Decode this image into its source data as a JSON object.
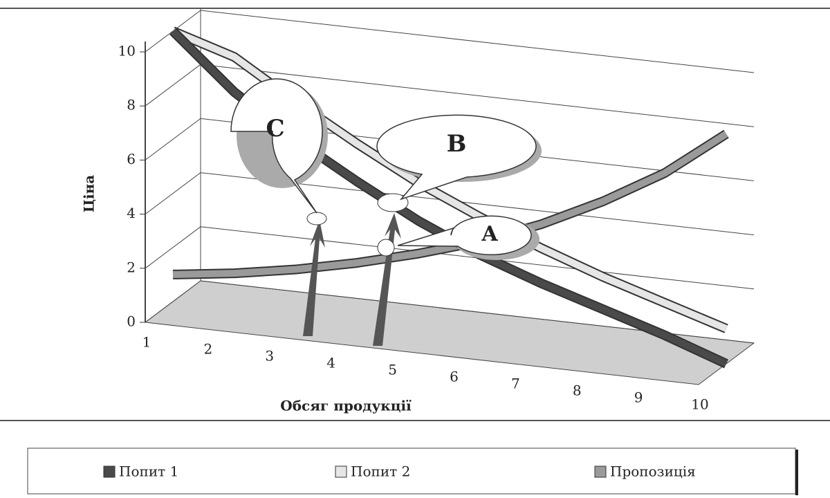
{
  "chart_data": {
    "type": "line",
    "y_axis_label": "Ціна",
    "x_axis_label": "Обсяг продукції",
    "categories": [
      "1",
      "2",
      "3",
      "4",
      "5",
      "6",
      "7",
      "8",
      "9",
      "10"
    ],
    "series": [
      {
        "name": "Попит 1",
        "color": "#4a4a4a",
        "values": [
          10,
          8,
          6.5,
          5.2,
          4,
          3,
          2.2,
          1.5,
          0.8,
          0
        ]
      },
      {
        "name": "Попит 2",
        "color": "#e6e6e6",
        "values": [
          10,
          9.3,
          7.9,
          6.6,
          5.4,
          4.4,
          3.5,
          2.7,
          2,
          1.3
        ]
      },
      {
        "name": "Пропозиція",
        "color": "#9a9a9a",
        "values": [
          1,
          1.3,
          1.7,
          2.2,
          2.8,
          3.5,
          4.4,
          5.5,
          6.8,
          8.5
        ]
      }
    ],
    "annotations": [
      "A",
      "B",
      "C"
    ],
    "ylim": [
      0,
      10
    ],
    "yticks": [
      0,
      2,
      4,
      6,
      8,
      10
    ],
    "grid": true
  }
}
